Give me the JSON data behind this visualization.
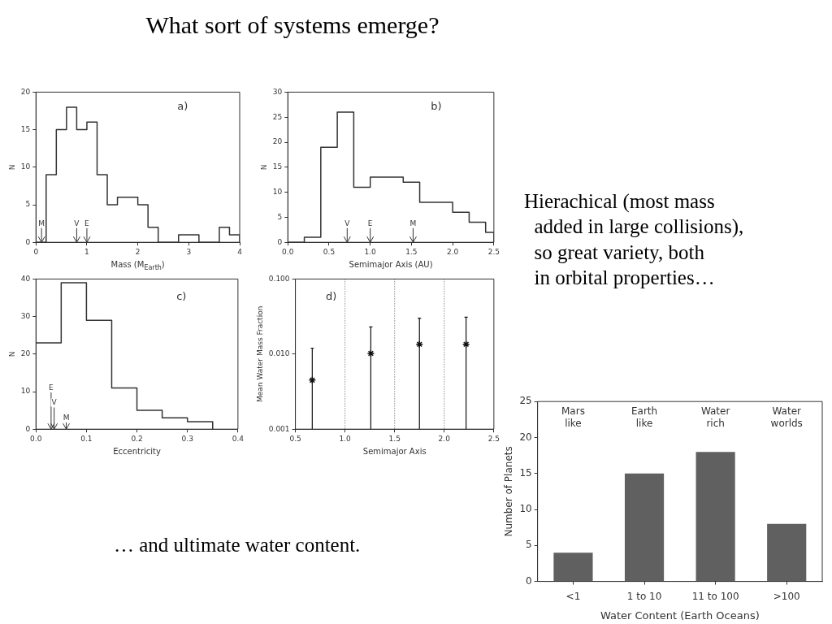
{
  "chart_data": [
    {
      "type": "other",
      "title": "What sort of systems emerge?",
      "annotations": [
        "Hierachical (most mass\n  added in large collisions),\n  so great variety, both\n  in orbital properties…",
        "… and ultimate water content."
      ]
    },
    {
      "type": "step",
      "x": [
        0,
        0.2,
        0.4,
        0.6,
        0.8,
        1.0,
        1.2,
        1.4,
        1.6,
        1.8,
        2.0,
        2.2,
        2.4,
        2.6,
        2.8,
        3.0,
        3.2,
        3.4,
        3.6,
        3.8,
        4.0
      ],
      "values": [
        0,
        9,
        15,
        18,
        15,
        16,
        9,
        5,
        6,
        6,
        5,
        2,
        0,
        0,
        1,
        1,
        0,
        0,
        2,
        1,
        0
      ],
      "color": "#333333",
      "xlim": [
        0,
        4
      ],
      "xticks": [
        0,
        1,
        2,
        3,
        4
      ],
      "ylim": [
        0,
        20
      ],
      "yticks": [
        0,
        5,
        10,
        15,
        20
      ],
      "xlabel": "Mass (M$_{Earth}$)",
      "ylabel": "N",
      "annotations": [
        "a)",
        "M",
        "V",
        "E"
      ]
    },
    {
      "type": "step",
      "x": [
        0,
        0.2,
        0.4,
        0.6,
        0.8,
        1.0,
        1.2,
        1.4,
        1.6,
        1.8,
        2.0,
        2.2,
        2.4,
        2.5
      ],
      "values": [
        0,
        1,
        19,
        26,
        11,
        13,
        13,
        12,
        8,
        8,
        6,
        4,
        2,
        0
      ],
      "color": "#333333",
      "xlim": [
        0,
        2.5
      ],
      "xticks": [
        {
          "value": 0,
          "label": "0.0"
        },
        0.5,
        {
          "value": 1,
          "label": "1.0"
        },
        1.5,
        {
          "value": 2,
          "label": "2.0"
        },
        2.5
      ],
      "ylim": [
        0,
        30
      ],
      "yticks": [
        0,
        5,
        10,
        15,
        20,
        25,
        30
      ],
      "xlabel": "Semimajor Axis (AU)",
      "ylabel": "N",
      "annotations": [
        "b)",
        "V",
        "E",
        "M"
      ]
    },
    {
      "type": "step",
      "x": [
        0,
        0.05,
        0.1,
        0.15,
        0.2,
        0.25,
        0.3,
        0.35
      ],
      "values": [
        23,
        39,
        29,
        11,
        5,
        3,
        2,
        0
      ],
      "color": "#333333",
      "xlim": [
        0,
        0.4
      ],
      "xticks": [
        {
          "value": 0,
          "label": "0.0"
        },
        0.1,
        0.2,
        0.3,
        0.4
      ],
      "ylim": [
        0,
        40
      ],
      "yticks": [
        0,
        10,
        20,
        30,
        40
      ],
      "xlabel": "Eccentricity",
      "ylabel": "N",
      "annotations": [
        "c)",
        "E",
        "V",
        "M"
      ]
    },
    {
      "type": "scatter",
      "x": [
        0.67,
        1.26,
        1.75,
        2.22
      ],
      "values": [
        0.0045,
        0.0102,
        0.0135,
        0.0135
      ],
      "errors": [
        [
          0.001,
          0.012
        ],
        [
          0.001,
          0.023
        ],
        [
          0.001,
          0.03
        ],
        [
          0.001,
          0.031
        ]
      ],
      "color": "#111111",
      "marker": "cross",
      "log": "y",
      "xlim": [
        0.5,
        2.5
      ],
      "xticks": [
        0.5,
        {
          "value": 1,
          "label": "1.0"
        },
        1.5,
        {
          "value": 2,
          "label": "2.0"
        },
        2.5
      ],
      "ylim": [
        0.001,
        0.1
      ],
      "yticks": [
        0.001,
        {
          "value": 0.01,
          "label": "0.010"
        },
        {
          "value": 0.1,
          "label": "0.100"
        }
      ],
      "xlabel": "Semimajor Axis",
      "ylabel": "Mean Water Mass Fraction",
      "ref_lines": [
        {
          "axis": "x",
          "value": 1.0,
          "line_style": "dotted"
        },
        {
          "axis": "x",
          "value": 1.5,
          "line_style": "dotted"
        },
        {
          "axis": "x",
          "value": 2.0,
          "line_style": "dotted"
        }
      ],
      "annotations": [
        "d)"
      ]
    },
    {
      "type": "bar",
      "categories": [
        "<1",
        "1 to 10",
        "11 to 100",
        ">100"
      ],
      "values": [
        4,
        15,
        18,
        8
      ],
      "color": "#606060",
      "ylim": [
        0,
        25
      ],
      "yticks": [
        0,
        5,
        10,
        15,
        20,
        25
      ],
      "xlabel": "Water Content (Earth Oceans)",
      "ylabel": "Number of Planets",
      "annotations": [
        "Mars\nlike",
        "Earth\nlike",
        "Water\nrich",
        "Water\nworlds"
      ]
    }
  ]
}
